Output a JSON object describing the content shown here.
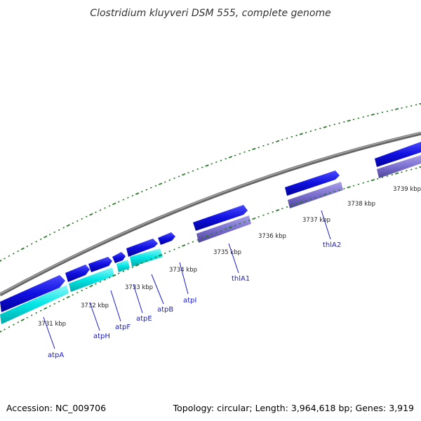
{
  "title": "Clostridium kluyveri DSM 555, complete genome",
  "footer": {
    "accession": "Accession: NC_009706",
    "summary": "Topology: circular; Length: 3,964,618 bp; Genes: 3,919"
  },
  "ticks": [
    "3731 kbp",
    "3732 kbp",
    "3733 kbp",
    "3734 kbp",
    "3735 kbp",
    "3736 kbp",
    "3737 kbp",
    "3738 kbp",
    "3739 kbp"
  ],
  "genes": [
    {
      "name": "atpA",
      "strand": "forward"
    },
    {
      "name": "atpH",
      "strand": "forward"
    },
    {
      "name": "atpF",
      "strand": "forward"
    },
    {
      "name": "atpE",
      "strand": "forward"
    },
    {
      "name": "atpB",
      "strand": "forward"
    },
    {
      "name": "atpI",
      "strand": "forward"
    },
    {
      "name": "thlA1",
      "strand": "forward"
    },
    {
      "name": "thlA2",
      "strand": "forward"
    }
  ],
  "colors": {
    "backbone": "#888888",
    "cds_forward": "#1010e0",
    "operon_track": "#00e5e5",
    "thiolase_track": "#7b6fd0",
    "tick_mark": "#2a7a2a",
    "label": "#1a1ad0"
  }
}
